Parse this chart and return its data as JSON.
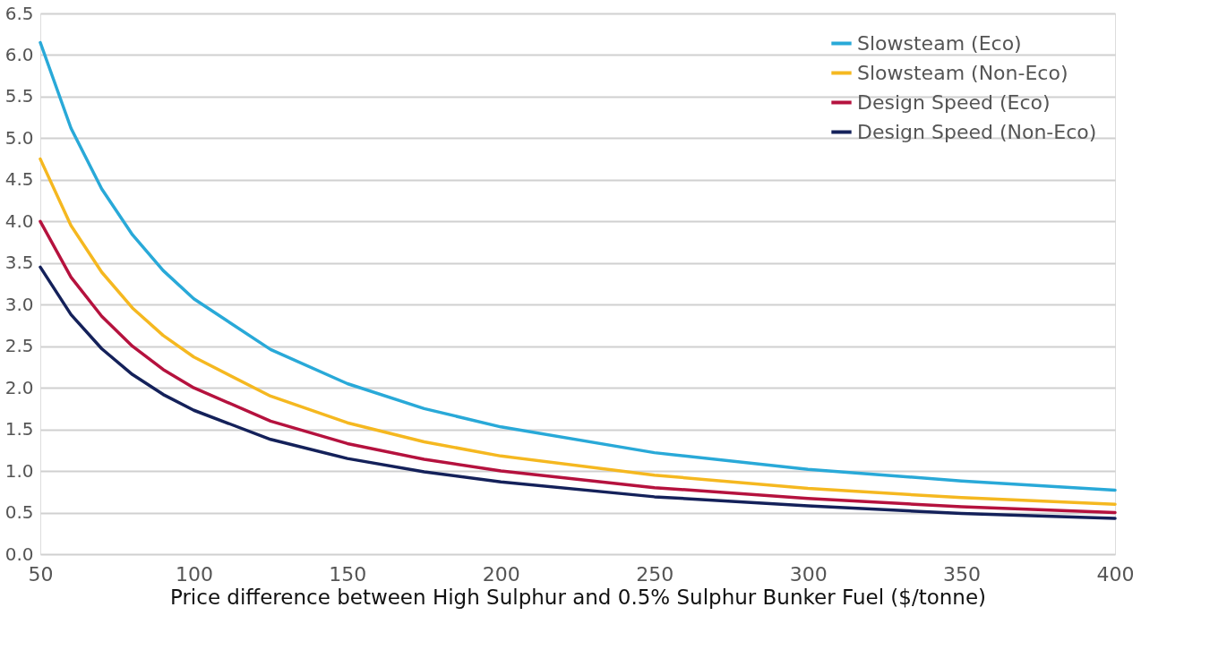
{
  "chart_data": {
    "type": "line",
    "xlabel": "Price difference between High Sulphur and 0.5% Sulphur Bunker Fuel ($/tonne)",
    "x": [
      50,
      60,
      70,
      80,
      90,
      100,
      125,
      150,
      175,
      200,
      250,
      300,
      350,
      400
    ],
    "series": [
      {
        "name": "Slowsteam (Eco)",
        "color": "#29a9d8",
        "values": [
          6.15,
          5.12,
          4.39,
          3.84,
          3.41,
          3.07,
          2.46,
          2.05,
          1.75,
          1.53,
          1.22,
          1.02,
          0.88,
          0.77
        ]
      },
      {
        "name": "Slowsteam (Non-Eco)",
        "color": "#f5b820",
        "values": [
          4.75,
          3.95,
          3.39,
          2.96,
          2.63,
          2.37,
          1.9,
          1.58,
          1.35,
          1.18,
          0.95,
          0.79,
          0.68,
          0.6
        ]
      },
      {
        "name": "Design Speed (Eco)",
        "color": "#b5123e",
        "values": [
          4.0,
          3.33,
          2.86,
          2.5,
          2.22,
          2.0,
          1.6,
          1.33,
          1.14,
          1.0,
          0.8,
          0.67,
          0.57,
          0.5
        ]
      },
      {
        "name": "Design Speed (Non-Eco)",
        "color": "#14215a",
        "values": [
          3.45,
          2.88,
          2.47,
          2.16,
          1.92,
          1.73,
          1.38,
          1.15,
          0.99,
          0.87,
          0.69,
          0.58,
          0.49,
          0.43
        ]
      }
    ],
    "xlim": [
      50,
      400
    ],
    "xticks": [
      50,
      100,
      150,
      200,
      250,
      300,
      350,
      400
    ],
    "ylim": [
      0,
      6.5
    ],
    "yticks": [
      {
        "value": 0,
        "label": "0.0"
      },
      {
        "value": 0.5,
        "label": "0.5"
      },
      {
        "value": 1,
        "label": "1.0"
      },
      {
        "value": 1.5,
        "label": "1.5"
      },
      {
        "value": 2,
        "label": "2.0"
      },
      {
        "value": 2.5,
        "label": "2.5"
      },
      {
        "value": 3,
        "label": "3.0"
      },
      {
        "value": 3.5,
        "label": "3.5"
      },
      {
        "value": 4,
        "label": "4.0"
      },
      {
        "value": 4.5,
        "label": "4.5"
      },
      {
        "value": 5,
        "label": "5.0"
      },
      {
        "value": 5.5,
        "label": "5.5"
      },
      {
        "value": 6,
        "label": "6.0"
      },
      {
        "value": 6.5,
        "label": "6.5"
      }
    ],
    "grid": "y",
    "legend": "top right",
    "marker": "none",
    "line_style": "solid"
  }
}
